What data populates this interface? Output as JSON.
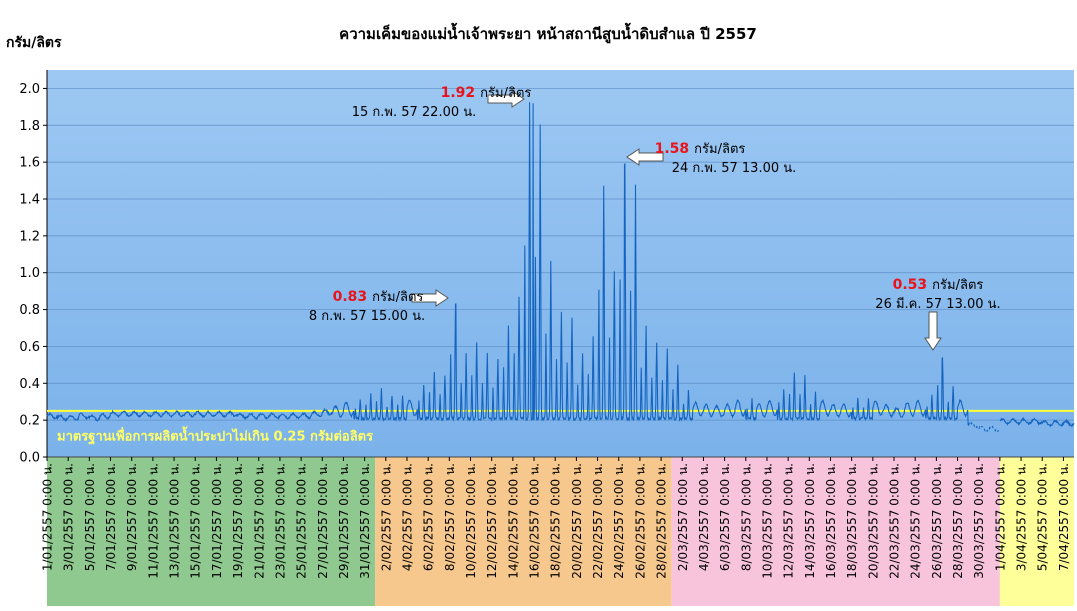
{
  "chart_data": {
    "type": "line",
    "title": "ความเค็มของแม่น้ำเจ้าพระยา หน้าสถานีสูบน้ำดิบสำแล ปี 2557",
    "ylabel": "กรัม/ลิตร",
    "ylim": [
      0,
      2.1
    ],
    "yticks": [
      "0.0",
      "0.2",
      "0.4",
      "0.6",
      "0.8",
      "1.0",
      "1.2",
      "1.4",
      "1.6",
      "1.8",
      "2.0"
    ],
    "x_start": "2014-01-01",
    "x_end": "2014-04-08",
    "standard": {
      "value": 0.25,
      "label": "มาตรฐานเพื่อการผลิตน้ำประปาไม่เกิน 0.25 กรัมต่อลิตร",
      "color": "#ffff33"
    },
    "colors": {
      "plot_bg_top": "#9dc8f3",
      "plot_bg_bottom": "#7bb2ea",
      "line": "#1565c0",
      "band_jan": "#8fc98f",
      "band_feb": "#f6c88d",
      "band_mar": "#f7c4dc",
      "band_apr": "#ffff99"
    },
    "x_tick_labels": [
      "1/01/2557 0:00 น.",
      "3/01/2557 0:00 น.",
      "5/01/2557 0:00 น.",
      "7/01/2557 0:00 น.",
      "9/01/2557 0:00 น.",
      "11/01/2557 0:00 น.",
      "13/01/2557 0:00 น.",
      "15/01/2557 0:00 น.",
      "17/01/2557 0:00 น.",
      "19/01/2557 0:00 น.",
      "21/01/2557 0:00 น.",
      "23/01/2557 0:00 น.",
      "25/01/2557 0:00 น.",
      "27/01/2557 0:00 น.",
      "29/01/2557 0:00 น.",
      "31/01/2557 0:00 น.",
      "2/02/2557 0:00 น.",
      "4/02/2557 0:00 น.",
      "6/02/2557 0:00 น.",
      "8/02/2557 0:00 น.",
      "10/02/2557 0:00 น.",
      "12/02/2557 0:00 น.",
      "14/02/2557 0:00 น.",
      "16/02/2557 0:00 น.",
      "18/02/2557 0:00 น.",
      "20/02/2557 0:00 น.",
      "22/02/2557 0:00 น.",
      "24/02/2557 0:00 น.",
      "26/02/2557 0:00 น.",
      "28/02/2557 0:00 น.",
      "2/03/2557 0:00 น.",
      "4/03/2557 0:00 น.",
      "6/03/2557 0:00 น.",
      "8/03/2557 0:00 น.",
      "10/03/2557 0:00 น.",
      "12/03/2557 0:00 น.",
      "14/03/2557 0:00 น.",
      "16/03/2557 0:00 น.",
      "18/03/2557 0:00 น.",
      "20/03/2557 0:00 น.",
      "22/03/2557 0:00 น.",
      "24/03/2557 0:00 น.",
      "26/03/2557 0:00 น.",
      "28/03/2557 0:00 น.",
      "30/03/2557 0:00 น.",
      "1/04/2557 0:00 น.",
      "3/04/2557 0:00 น.",
      "5/04/2557 0:00 น.",
      "7/04/2557 0:00 น."
    ],
    "daily_peaks": [
      [
        "2014-01-01",
        0.23
      ],
      [
        "2014-01-02",
        0.22
      ],
      [
        "2014-01-03",
        0.22
      ],
      [
        "2014-01-04",
        0.23
      ],
      [
        "2014-01-05",
        0.22
      ],
      [
        "2014-01-06",
        0.23
      ],
      [
        "2014-01-07",
        0.24
      ],
      [
        "2014-01-08",
        0.24
      ],
      [
        "2014-01-09",
        0.24
      ],
      [
        "2014-01-10",
        0.24
      ],
      [
        "2014-01-11",
        0.24
      ],
      [
        "2014-01-12",
        0.24
      ],
      [
        "2014-01-13",
        0.24
      ],
      [
        "2014-01-14",
        0.24
      ],
      [
        "2014-01-15",
        0.24
      ],
      [
        "2014-01-16",
        0.24
      ],
      [
        "2014-01-17",
        0.24
      ],
      [
        "2014-01-18",
        0.24
      ],
      [
        "2014-01-19",
        0.23
      ],
      [
        "2014-01-20",
        0.23
      ],
      [
        "2014-01-21",
        0.23
      ],
      [
        "2014-01-22",
        0.23
      ],
      [
        "2014-01-23",
        0.23
      ],
      [
        "2014-01-24",
        0.23
      ],
      [
        "2014-01-25",
        0.23
      ],
      [
        "2014-01-26",
        0.24
      ],
      [
        "2014-01-27",
        0.25
      ],
      [
        "2014-01-28",
        0.27
      ],
      [
        "2014-01-29",
        0.29
      ],
      [
        "2014-01-30",
        0.31
      ],
      [
        "2014-01-31",
        0.34
      ],
      [
        "2014-02-01",
        0.36
      ],
      [
        "2014-02-02",
        0.33
      ],
      [
        "2014-02-03",
        0.33
      ],
      [
        "2014-02-04",
        0.3
      ],
      [
        "2014-02-05",
        0.38
      ],
      [
        "2014-02-06",
        0.45
      ],
      [
        "2014-02-07",
        0.44
      ],
      [
        "2014-02-08",
        0.83
      ],
      [
        "2014-02-09",
        0.55
      ],
      [
        "2014-02-10",
        0.62
      ],
      [
        "2014-02-11",
        0.55
      ],
      [
        "2014-02-12",
        0.52
      ],
      [
        "2014-02-13",
        0.7
      ],
      [
        "2014-02-14",
        0.86
      ],
      [
        "2014-02-15",
        1.92
      ],
      [
        "2014-02-16",
        1.8
      ],
      [
        "2014-02-17",
        1.05
      ],
      [
        "2014-02-18",
        0.78
      ],
      [
        "2014-02-19",
        0.75
      ],
      [
        "2014-02-20",
        0.55
      ],
      [
        "2014-02-21",
        0.65
      ],
      [
        "2014-02-22",
        1.47
      ],
      [
        "2014-02-23",
        1.0
      ],
      [
        "2014-02-24",
        1.58
      ],
      [
        "2014-02-25",
        1.47
      ],
      [
        "2014-02-26",
        0.7
      ],
      [
        "2014-02-27",
        0.62
      ],
      [
        "2014-02-28",
        0.58
      ],
      [
        "2014-03-01",
        0.49
      ],
      [
        "2014-03-02",
        0.35
      ],
      [
        "2014-03-03",
        0.29
      ],
      [
        "2014-03-04",
        0.28
      ],
      [
        "2014-03-05",
        0.27
      ],
      [
        "2014-03-06",
        0.28
      ],
      [
        "2014-03-07",
        0.3
      ],
      [
        "2014-03-08",
        0.31
      ],
      [
        "2014-03-09",
        0.28
      ],
      [
        "2014-03-10",
        0.3
      ],
      [
        "2014-03-11",
        0.36
      ],
      [
        "2014-03-12",
        0.45
      ],
      [
        "2014-03-13",
        0.44
      ],
      [
        "2014-03-14",
        0.34
      ],
      [
        "2014-03-15",
        0.3
      ],
      [
        "2014-03-16",
        0.28
      ],
      [
        "2014-03-17",
        0.28
      ],
      [
        "2014-03-18",
        0.32
      ],
      [
        "2014-03-19",
        0.31
      ],
      [
        "2014-03-20",
        0.3
      ],
      [
        "2014-03-21",
        0.28
      ],
      [
        "2014-03-22",
        0.26
      ],
      [
        "2014-03-23",
        0.29
      ],
      [
        "2014-03-24",
        0.3
      ],
      [
        "2014-03-25",
        0.33
      ],
      [
        "2014-03-26",
        0.53
      ],
      [
        "2014-03-27",
        0.38
      ],
      [
        "2014-03-28",
        0.3
      ],
      [
        "2014-03-29",
        0.18
      ],
      [
        "2014-03-30",
        0.16
      ],
      [
        "2014-03-31",
        0.16
      ],
      [
        "2014-04-01",
        0.2
      ],
      [
        "2014-04-02",
        0.2
      ],
      [
        "2014-04-03",
        0.2
      ],
      [
        "2014-04-04",
        0.2
      ],
      [
        "2014-04-05",
        0.19
      ],
      [
        "2014-04-06",
        0.19
      ],
      [
        "2014-04-07",
        0.19
      ],
      [
        "2014-04-08",
        0.19
      ]
    ],
    "annotations": [
      {
        "value": "0.83",
        "unit": "กรัม/ลิตร",
        "date": "8 ก.พ. 57 15.00 น.",
        "x": "2014-02-08 15:00",
        "y": 0.83
      },
      {
        "value": "1.92",
        "unit": "กรัม/ลิตร",
        "date": "15 ก.พ. 57 22.00 น.",
        "x": "2014-02-15 22:00",
        "y": 1.92
      },
      {
        "value": "1.58",
        "unit": "กรัม/ลิตร",
        "date": "24 ก.พ. 57 13.00 น.",
        "x": "2014-02-24 13:00",
        "y": 1.58
      },
      {
        "value": "0.53",
        "unit": "กรัม/ลิตร",
        "date": "26 มี.ค. 57 13.00 น.",
        "x": "2014-03-26 13:00",
        "y": 0.53
      }
    ]
  }
}
